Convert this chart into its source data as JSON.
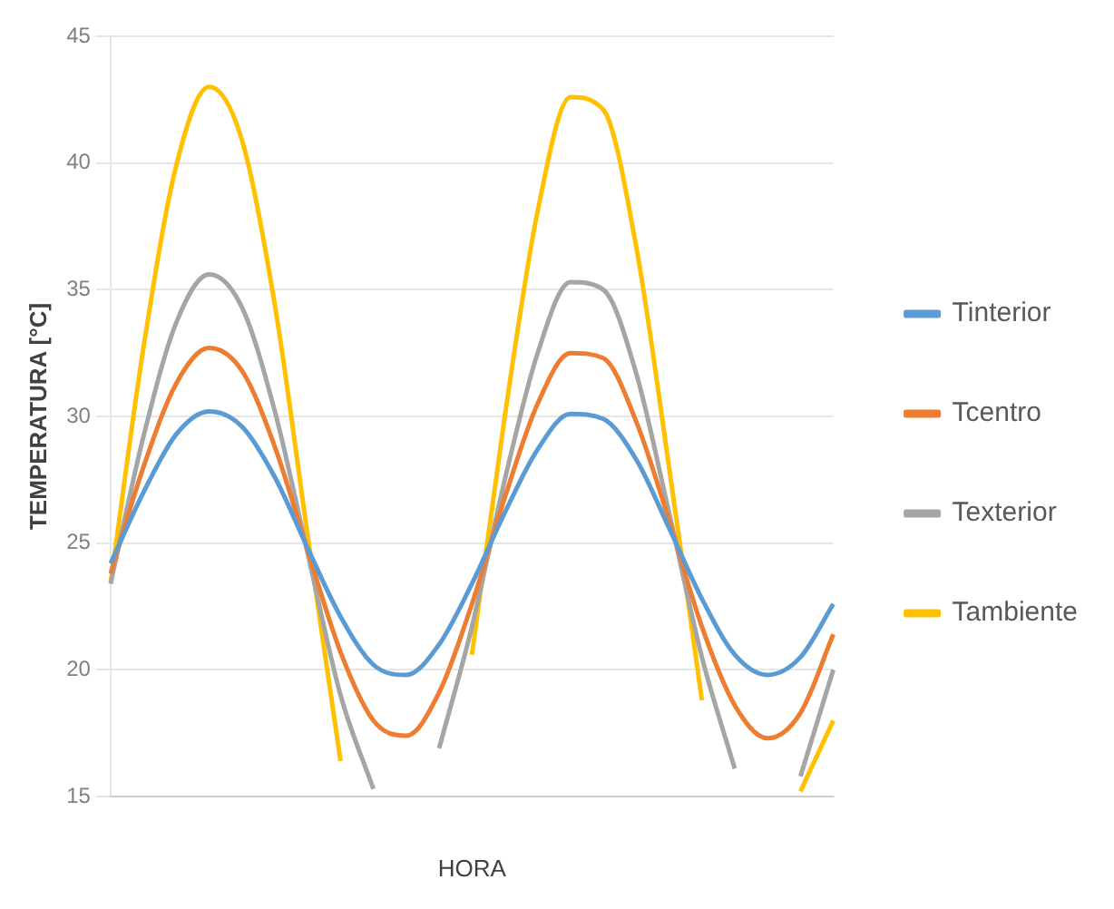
{
  "chart_data": {
    "type": "line",
    "xlabel": "HORA",
    "ylabel": "TEMPERATURA [°C]",
    "categories": [
      null,
      null,
      null,
      null,
      null,
      null,
      null,
      null,
      null,
      null,
      null,
      null,
      null,
      null,
      null,
      null,
      null,
      null,
      null,
      null,
      null,
      null,
      null
    ],
    "ylim": [
      15,
      45
    ],
    "yticks": [
      15,
      20,
      25,
      30,
      35,
      40,
      45
    ],
    "grid": "y",
    "legend": "right",
    "marker": "none",
    "series": [
      {
        "name": "Tinterior",
        "color": "#5b9bd5",
        "values": [
          24.2,
          27.0,
          29.3,
          30.2,
          29.6,
          27.6,
          24.8,
          22.1,
          20.2,
          19.8,
          21.0,
          23.4,
          26.2,
          28.7,
          30.1,
          29.9,
          28.3,
          25.6,
          22.8,
          20.6,
          19.8,
          20.5,
          22.6
        ]
      },
      {
        "name": "Tcentro",
        "color": "#ed7d31",
        "values": [
          23.8,
          28.0,
          31.3,
          32.7,
          31.8,
          28.8,
          24.7,
          20.7,
          18.0,
          17.4,
          19.1,
          22.6,
          26.8,
          30.5,
          32.5,
          32.3,
          29.8,
          25.9,
          21.7,
          18.6,
          17.3,
          18.3,
          21.4
        ]
      },
      {
        "name": "Texterior",
        "color": "#a5a5a5",
        "values": [
          23.4,
          29.2,
          33.7,
          35.6,
          34.3,
          30.2,
          24.6,
          19.0,
          15.3,
          null,
          16.9,
          21.7,
          27.5,
          32.5,
          35.3,
          35.0,
          31.7,
          26.2,
          20.5,
          16.1,
          null,
          15.8,
          20.0
        ]
      },
      {
        "name": "Tambiente",
        "color": "#ffc000",
        "values": [
          23.4,
          32.7,
          39.9,
          43.0,
          40.9,
          34.4,
          25.3,
          16.4,
          null,
          null,
          null,
          20.6,
          30.0,
          38.1,
          42.6,
          42.1,
          36.7,
          28.0,
          18.8,
          null,
          null,
          15.2,
          18.0
        ]
      }
    ]
  }
}
